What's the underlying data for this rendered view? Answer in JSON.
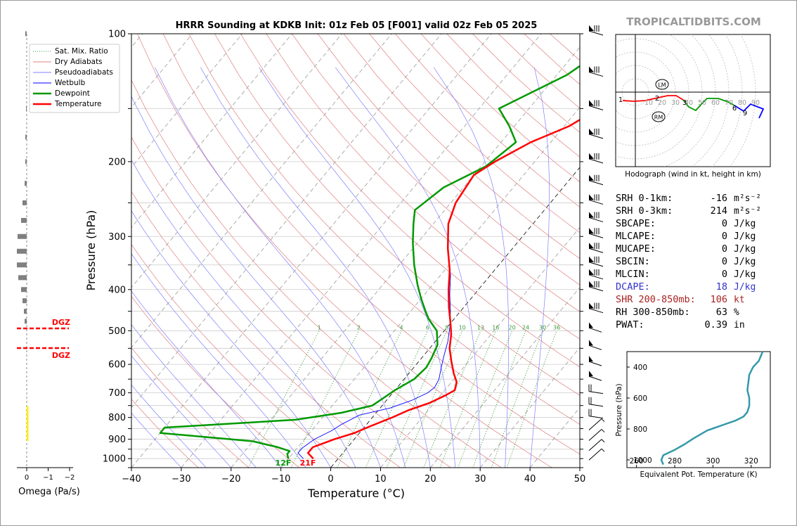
{
  "watermark": "TROPICALTIDBITS.COM",
  "colors": {
    "temperature": "#ff0000",
    "dewpoint": "#009900",
    "wetbulb": "#0000ff",
    "dry_adiabat": "#e08080",
    "moist_adiabat": "#8080ff",
    "mixing_ratio": "#3a9a3a",
    "dcape": "#3333cc",
    "shear": "#aa2222",
    "theta_e": "#3399aa",
    "dgz": "#ff0000",
    "omega_up": "#ffee00"
  },
  "chart_data": [
    {
      "id": "skewt",
      "type": "line",
      "title": "HRRR Sounding at KDKB Init: 01z Feb 05 [F001] valid 02z Feb 05 2025",
      "xlabel": "Temperature (°C)",
      "ylabel": "Pressure (hPa)",
      "xlim": [
        -40,
        50
      ],
      "ylim": [
        1050,
        100
      ],
      "y_scale": "log",
      "x_ticks": [
        "−40",
        "−30",
        "−20",
        "−10",
        "0",
        "10",
        "20",
        "30",
        "40",
        "50"
      ],
      "y_ticks": [
        "100",
        "200",
        "300",
        "400",
        "500",
        "600",
        "700",
        "800",
        "900",
        "1000"
      ],
      "legend": [
        "Sat. Mix. Ratio",
        "Dry Adiabats",
        "Pseudoadiabats",
        "Wetbulb",
        "Dewpoint",
        "Temperature"
      ],
      "legend_position": "top-left",
      "mixing_ratio_labels": [
        "1",
        "2",
        "4",
        "6",
        "8",
        "10",
        "13",
        "16",
        "20",
        "24",
        "30",
        "36"
      ],
      "surface_labels": {
        "dewpoint": "12F",
        "temperature": "21F"
      },
      "series": [
        {
          "name": "Temperature",
          "points": [
            [
              -5,
              1000
            ],
            [
              -7,
              970
            ],
            [
              -7,
              940
            ],
            [
              -4,
              900
            ],
            [
              -1,
              870
            ],
            [
              1,
              840
            ],
            [
              4,
              800
            ],
            [
              6,
              770
            ],
            [
              9,
              740
            ],
            [
              11,
              710
            ],
            [
              12,
              690
            ],
            [
              11,
              660
            ],
            [
              9,
              630
            ],
            [
              6.5,
              590
            ],
            [
              4,
              550
            ],
            [
              2,
              510
            ],
            [
              0,
              480
            ],
            [
              -3,
              440
            ],
            [
              -6,
              400
            ],
            [
              -9,
              360
            ],
            [
              -13,
              320
            ],
            [
              -17,
              280
            ],
            [
              -19,
              250
            ],
            [
              -20,
              215
            ],
            [
              -18,
              200
            ],
            [
              -14,
              180
            ],
            [
              -9,
              165
            ],
            [
              -6,
              150
            ],
            [
              -5,
              125
            ],
            [
              -4,
              110
            ],
            [
              -2,
              100
            ]
          ]
        },
        {
          "name": "Dewpoint",
          "points": [
            [
              -10,
              1000
            ],
            [
              -11,
              975
            ],
            [
              -11,
              960
            ],
            [
              -14,
              940
            ],
            [
              -20,
              910
            ],
            [
              -40,
              870
            ],
            [
              -40,
              845
            ],
            [
              -15,
              810
            ],
            [
              -7,
              780
            ],
            [
              -2,
              750
            ],
            [
              -1,
              720
            ],
            [
              0,
              690
            ],
            [
              2,
              650
            ],
            [
              2.5,
              610
            ],
            [
              2,
              580
            ],
            [
              1,
              540
            ],
            [
              -1.5,
              500
            ],
            [
              -5,
              470
            ],
            [
              -7,
              450
            ],
            [
              -10,
              420
            ],
            [
              -13,
              390
            ],
            [
              -17,
              350
            ],
            [
              -21,
              310
            ],
            [
              -24,
              280
            ],
            [
              -26,
              260
            ],
            [
              -24,
              230
            ],
            [
              -19,
              205
            ],
            [
              -17,
              180
            ],
            [
              -21,
              165
            ],
            [
              -26,
              150
            ],
            [
              -18,
              125
            ],
            [
              -15,
              110
            ],
            [
              -13,
              100
            ]
          ]
        },
        {
          "name": "Wetbulb",
          "points": [
            [
              -7,
              1000
            ],
            [
              -9,
              970
            ],
            [
              -9,
              945
            ],
            [
              -8,
              900
            ],
            [
              -6,
              860
            ],
            [
              -5,
              830
            ],
            [
              -3,
              790
            ],
            [
              2,
              760
            ],
            [
              5,
              730
            ],
            [
              7,
              700
            ],
            [
              7.5,
              680
            ],
            [
              7,
              650
            ],
            [
              5.5,
              610
            ],
            [
              4,
              570
            ],
            [
              2.5,
              530
            ],
            [
              0.5,
              490
            ],
            [
              -2,
              450
            ],
            [
              -5,
              410
            ],
            [
              -8,
              370
            ],
            [
              -13,
              320
            ],
            [
              -17,
              280
            ],
            [
              -19,
              250
            ],
            [
              -20,
              215
            ],
            [
              -18,
              200
            ],
            [
              -14,
              180
            ],
            [
              -9,
              165
            ],
            [
              -6,
              150
            ],
            [
              -5,
              125
            ],
            [
              -4,
              110
            ],
            [
              -2,
              100
            ]
          ]
        }
      ]
    },
    {
      "id": "hodograph",
      "type": "line",
      "title": "Hodograph (wind in kt, height in km)",
      "ring_labels": [
        "10",
        "20",
        "30",
        "40",
        "50",
        "60",
        "70",
        "80",
        "90"
      ],
      "height_labels": [
        "1",
        "2",
        "3",
        "6",
        "9"
      ],
      "markers": [
        "LM",
        "RM"
      ]
    },
    {
      "id": "theta_e",
      "type": "line",
      "xlabel": "Equivalent Pot. Temperature (K)",
      "ylabel": "Pressure (hPa)",
      "xlim": [
        255,
        330
      ],
      "ylim": [
        1050,
        300
      ],
      "x_ticks": [
        "260",
        "280",
        "300",
        "320"
      ],
      "y_ticks": [
        "400",
        "600",
        "800",
        "1000"
      ],
      "series": [
        {
          "name": "Theta-E",
          "points": [
            [
              274,
              1030
            ],
            [
              273,
              1000
            ],
            [
              274,
              970
            ],
            [
              280,
              935
            ],
            [
              285,
              900
            ],
            [
              290,
              860
            ],
            [
              297,
              810
            ],
            [
              305,
              775
            ],
            [
              312,
              745
            ],
            [
              316,
              720
            ],
            [
              318,
              690
            ],
            [
              319,
              650
            ],
            [
              319,
              600
            ],
            [
              318,
              550
            ],
            [
              319,
              450
            ],
            [
              321,
              400
            ],
            [
              324,
              360
            ],
            [
              325,
              330
            ],
            [
              326,
              300
            ]
          ]
        }
      ]
    },
    {
      "id": "omega",
      "type": "bar",
      "xlabel": "Omega (Pa/s)",
      "x_ticks": [
        "0",
        "−1",
        "−2"
      ],
      "dgz_label": "DGZ"
    }
  ],
  "stats": [
    {
      "label": "SRH 0-1km:",
      "value": "-16",
      "unit": "m²s⁻²",
      "color": "#000000"
    },
    {
      "label": "SRH 0-3km:",
      "value": "214",
      "unit": "m²s⁻²",
      "color": "#000000"
    },
    {
      "label": "SBCAPE:",
      "value": "0",
      "unit": "J/kg",
      "color": "#000000"
    },
    {
      "label": "MLCAPE:",
      "value": "0",
      "unit": "J/kg",
      "color": "#000000"
    },
    {
      "label": "MUCAPE:",
      "value": "0",
      "unit": "J/kg",
      "color": "#000000"
    },
    {
      "label": "SBCIN:",
      "value": "0",
      "unit": "J/kg",
      "color": "#000000"
    },
    {
      "label": "MLCIN:",
      "value": "0",
      "unit": "J/kg",
      "color": "#000000"
    },
    {
      "label": "DCAPE:",
      "value": "18",
      "unit": "J/kg",
      "color": "#3333cc"
    },
    {
      "label": "SHR 200-850mb:",
      "value": "106",
      "unit": "kt",
      "color": "#aa2222"
    },
    {
      "label": "RH 300-850mb:",
      "value": "63",
      "unit": "%",
      "color": "#000000"
    },
    {
      "label": "PWAT:",
      "value": "0.39",
      "unit": "in",
      "color": "#000000"
    }
  ]
}
